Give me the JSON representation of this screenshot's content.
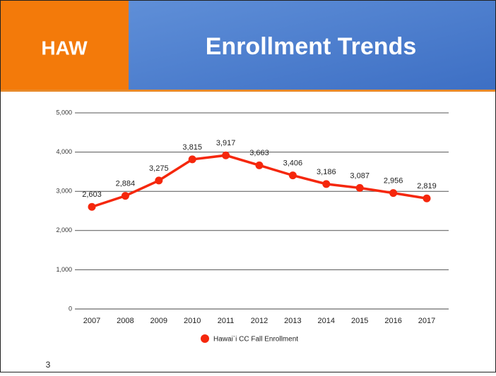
{
  "header": {
    "tag": "HAW",
    "title": "Enrollment Trends"
  },
  "page_number": "3",
  "chart_data": {
    "type": "line",
    "categories": [
      "2007",
      "2008",
      "2009",
      "2010",
      "2011",
      "2012",
      "2013",
      "2014",
      "2015",
      "2016",
      "2017"
    ],
    "series": [
      {
        "name": "Hawai`i CC Fall Enrollment",
        "color": "#f5270c",
        "values": [
          2603,
          2884,
          3275,
          3815,
          3917,
          3663,
          3406,
          3186,
          3087,
          2956,
          2819
        ],
        "value_labels": [
          "2,603",
          "2,884",
          "3,275",
          "3,815",
          "3,917",
          "3,663",
          "3,406",
          "3,186",
          "3,087",
          "2,956",
          "2,819"
        ]
      }
    ],
    "ylim": [
      0,
      5000
    ],
    "yticks": [
      0,
      {
        "value": 1000,
        "label": "1,000"
      },
      {
        "value": 2000,
        "label": "2,000"
      },
      {
        "value": 3000,
        "label": "3,000"
      },
      {
        "value": 4000,
        "label": "4,000"
      },
      {
        "value": 5000,
        "label": "5,000"
      }
    ],
    "grid": true,
    "legend": "bottom"
  }
}
